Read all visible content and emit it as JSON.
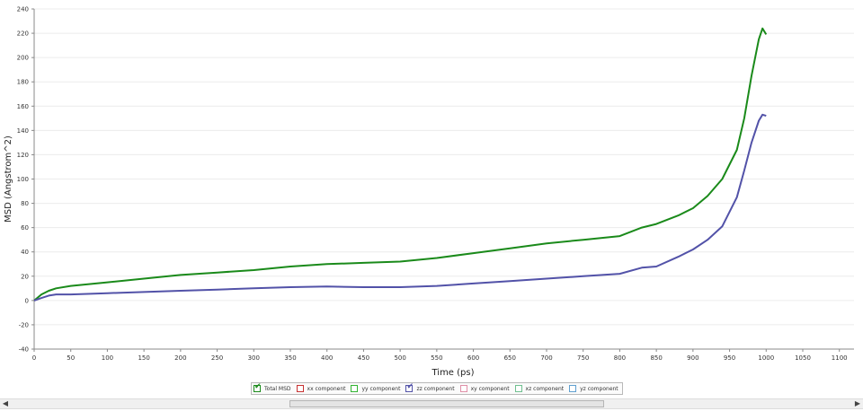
{
  "chart_data": {
    "type": "line",
    "title": "",
    "xlabel": "Time (ps)",
    "ylabel": "MSD (Angstrom^2)",
    "xlim": [
      0,
      1120
    ],
    "ylim": [
      -40,
      240
    ],
    "x_ticks": [
      0,
      50,
      100,
      150,
      200,
      250,
      300,
      350,
      400,
      450,
      500,
      550,
      600,
      650,
      700,
      750,
      800,
      850,
      900,
      950,
      1000,
      1050,
      1100
    ],
    "y_ticks": [
      -40,
      -20,
      0,
      20,
      40,
      60,
      80,
      100,
      120,
      140,
      160,
      180,
      200,
      220,
      240
    ],
    "grid": true,
    "legend_position": "bottom-center",
    "series": [
      {
        "name": "Total MSD",
        "color": "#1a8a1a",
        "visible": true,
        "x": [
          0,
          10,
          20,
          30,
          50,
          100,
          150,
          200,
          250,
          300,
          350,
          400,
          450,
          500,
          550,
          600,
          650,
          700,
          750,
          800,
          830,
          850,
          880,
          900,
          920,
          940,
          960,
          970,
          980,
          990,
          995,
          1000
        ],
        "y": [
          0,
          5,
          8,
          10,
          12,
          15,
          18,
          21,
          23,
          25,
          28,
          30,
          31,
          32,
          35,
          39,
          43,
          47,
          50,
          53,
          60,
          63,
          70,
          76,
          86,
          100,
          124,
          150,
          185,
          215,
          224,
          219
        ]
      },
      {
        "name": "zz component",
        "color": "#5252a8",
        "visible": true,
        "x": [
          0,
          10,
          20,
          30,
          50,
          100,
          150,
          200,
          250,
          300,
          350,
          400,
          450,
          500,
          550,
          600,
          650,
          700,
          750,
          800,
          830,
          850,
          880,
          900,
          920,
          940,
          960,
          970,
          980,
          990,
          995,
          1000
        ],
        "y": [
          0,
          2,
          4,
          5,
          5,
          6,
          7,
          8,
          9,
          10,
          11,
          11.5,
          11,
          11,
          12,
          14,
          16,
          18,
          20,
          22,
          27,
          28,
          36,
          42,
          50,
          61,
          85,
          107,
          130,
          148,
          153,
          152
        ]
      }
    ]
  },
  "legend": {
    "items": [
      {
        "label": "Total MSD",
        "color": "#1a8a1a",
        "checked": true
      },
      {
        "label": "xx component",
        "color": "#c83232",
        "checked": false
      },
      {
        "label": "yy component",
        "color": "#32b432",
        "checked": false
      },
      {
        "label": "zz component",
        "color": "#5252a8",
        "checked": true
      },
      {
        "label": "xy component",
        "color": "#e090a8",
        "checked": false
      },
      {
        "label": "xz component",
        "color": "#70c090",
        "checked": false
      },
      {
        "label": "yz component",
        "color": "#60a0d0",
        "checked": false
      }
    ]
  },
  "scrollbar": {
    "left_arrow": "◀",
    "right_arrow": "▶"
  }
}
